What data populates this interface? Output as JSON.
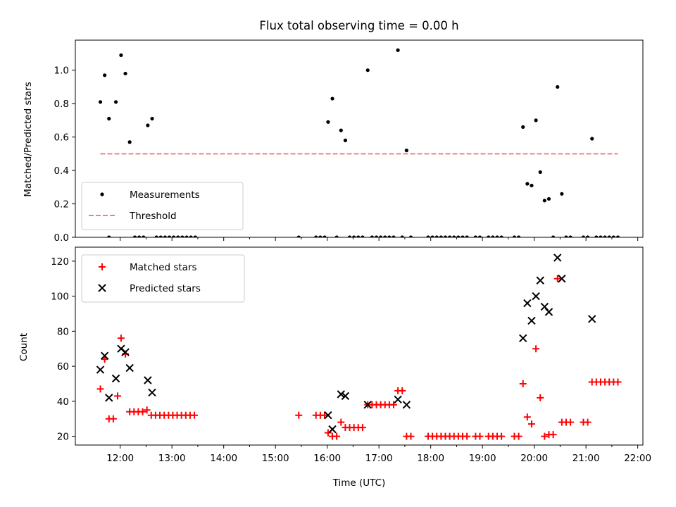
{
  "chart_data": [
    {
      "type": "scatter",
      "title": "Flux total observing time = 0.00 h",
      "xlabel": "",
      "ylabel": "Matched/Predicted stars",
      "xlim": [
        "11:08",
        "22:06"
      ],
      "ylim": [
        0,
        1.18
      ],
      "x_ticks": [
        "12:00",
        "13:00",
        "14:00",
        "15:00",
        "16:00",
        "17:00",
        "18:00",
        "19:00",
        "20:00",
        "21:00",
        "22:00"
      ],
      "y_ticks": [
        "0.0",
        "0.2",
        "0.4",
        "0.6",
        "0.8",
        "1.0"
      ],
      "legend_position": "lower-left",
      "series": [
        {
          "name": "Measurements",
          "marker": "dot",
          "color": "#000000",
          "points": [
            [
              "11:37",
              0.81
            ],
            [
              "11:42",
              0.97
            ],
            [
              "11:47",
              0.71
            ],
            [
              "11:55",
              0.81
            ],
            [
              "12:01",
              1.09
            ],
            [
              "12:06",
              0.98
            ],
            [
              "12:11",
              0.57
            ],
            [
              "12:32",
              0.67
            ],
            [
              "12:37",
              0.71
            ],
            [
              "16:01",
              0.69
            ],
            [
              "16:06",
              0.83
            ],
            [
              "16:16",
              0.64
            ],
            [
              "16:21",
              0.58
            ],
            [
              "16:47",
              1.0
            ],
            [
              "17:22",
              1.12
            ],
            [
              "17:32",
              0.52
            ],
            [
              "19:47",
              0.66
            ],
            [
              "19:52",
              0.32
            ],
            [
              "19:57",
              0.31
            ],
            [
              "20:02",
              0.7
            ],
            [
              "20:07",
              0.39
            ],
            [
              "20:12",
              0.22
            ],
            [
              "20:17",
              0.23
            ],
            [
              "20:27",
              0.9
            ],
            [
              "20:32",
              0.26
            ],
            [
              "21:07",
              0.59
            ],
            [
              "11:47",
              0.0
            ],
            [
              "12:17",
              0.0
            ],
            [
              "12:22",
              0.0
            ],
            [
              "12:27",
              0.0
            ],
            [
              "12:42",
              0.0
            ],
            [
              "12:47",
              0.0
            ],
            [
              "12:52",
              0.0
            ],
            [
              "12:57",
              0.0
            ],
            [
              "13:02",
              0.0
            ],
            [
              "13:07",
              0.0
            ],
            [
              "13:12",
              0.0
            ],
            [
              "13:17",
              0.0
            ],
            [
              "13:22",
              0.0
            ],
            [
              "13:27",
              0.0
            ],
            [
              "15:27",
              0.0
            ],
            [
              "15:47",
              0.0
            ],
            [
              "15:52",
              0.0
            ],
            [
              "15:57",
              0.0
            ],
            [
              "16:11",
              0.0
            ],
            [
              "16:26",
              0.0
            ],
            [
              "16:31",
              0.0
            ],
            [
              "16:36",
              0.0
            ],
            [
              "16:41",
              0.0
            ],
            [
              "16:52",
              0.0
            ],
            [
              "16:57",
              0.0
            ],
            [
              "17:02",
              0.0
            ],
            [
              "17:07",
              0.0
            ],
            [
              "17:12",
              0.0
            ],
            [
              "17:17",
              0.0
            ],
            [
              "17:27",
              0.0
            ],
            [
              "17:37",
              0.0
            ],
            [
              "17:57",
              0.0
            ],
            [
              "18:02",
              0.0
            ],
            [
              "18:07",
              0.0
            ],
            [
              "18:12",
              0.0
            ],
            [
              "18:17",
              0.0
            ],
            [
              "18:22",
              0.0
            ],
            [
              "18:27",
              0.0
            ],
            [
              "18:32",
              0.0
            ],
            [
              "18:37",
              0.0
            ],
            [
              "18:42",
              0.0
            ],
            [
              "18:52",
              0.0
            ],
            [
              "18:57",
              0.0
            ],
            [
              "19:07",
              0.0
            ],
            [
              "19:12",
              0.0
            ],
            [
              "19:17",
              0.0
            ],
            [
              "19:22",
              0.0
            ],
            [
              "19:37",
              0.0
            ],
            [
              "19:42",
              0.0
            ],
            [
              "20:22",
              0.0
            ],
            [
              "20:37",
              0.0
            ],
            [
              "20:42",
              0.0
            ],
            [
              "20:57",
              0.0
            ],
            [
              "21:02",
              0.0
            ],
            [
              "21:12",
              0.0
            ],
            [
              "21:17",
              0.0
            ],
            [
              "21:22",
              0.0
            ],
            [
              "21:27",
              0.0
            ],
            [
              "21:32",
              0.0
            ],
            [
              "21:37",
              0.0
            ]
          ]
        },
        {
          "name": "Threshold",
          "style": "dashed",
          "color": "#f08080",
          "points": [
            [
              "11:37",
              0.5
            ],
            [
              "21:37",
              0.5
            ]
          ]
        }
      ]
    },
    {
      "type": "scatter",
      "title": "",
      "xlabel": "Time (UTC)",
      "ylabel": "Count",
      "xlim": [
        "11:08",
        "22:06"
      ],
      "ylim": [
        15,
        128
      ],
      "x_ticks": [
        "12:00",
        "13:00",
        "14:00",
        "15:00",
        "16:00",
        "17:00",
        "18:00",
        "19:00",
        "20:00",
        "21:00",
        "22:00"
      ],
      "y_ticks": [
        "20",
        "40",
        "60",
        "80",
        "100",
        "120"
      ],
      "legend_position": "upper-left",
      "series": [
        {
          "name": "Matched stars",
          "marker": "plus",
          "color": "#ff0000",
          "points": [
            [
              "11:37",
              47
            ],
            [
              "11:42",
              64
            ],
            [
              "11:47",
              30
            ],
            [
              "11:52",
              30
            ],
            [
              "11:57",
              43
            ],
            [
              "12:01",
              76
            ],
            [
              "12:06",
              67
            ],
            [
              "12:11",
              34
            ],
            [
              "12:16",
              34
            ],
            [
              "12:21",
              34
            ],
            [
              "12:26",
              34
            ],
            [
              "12:31",
              35
            ],
            [
              "12:36",
              32
            ],
            [
              "12:41",
              32
            ],
            [
              "12:46",
              32
            ],
            [
              "12:51",
              32
            ],
            [
              "12:56",
              32
            ],
            [
              "13:01",
              32
            ],
            [
              "13:06",
              32
            ],
            [
              "13:11",
              32
            ],
            [
              "13:16",
              32
            ],
            [
              "13:21",
              32
            ],
            [
              "13:26",
              32
            ],
            [
              "15:27",
              32
            ],
            [
              "15:47",
              32
            ],
            [
              "15:52",
              32
            ],
            [
              "15:57",
              32
            ],
            [
              "16:01",
              22
            ],
            [
              "16:06",
              20
            ],
            [
              "16:11",
              20
            ],
            [
              "16:16",
              28
            ],
            [
              "16:21",
              25
            ],
            [
              "16:26",
              25
            ],
            [
              "16:31",
              25
            ],
            [
              "16:36",
              25
            ],
            [
              "16:41",
              25
            ],
            [
              "16:47",
              38
            ],
            [
              "16:52",
              38
            ],
            [
              "16:57",
              38
            ],
            [
              "17:02",
              38
            ],
            [
              "17:07",
              38
            ],
            [
              "17:12",
              38
            ],
            [
              "17:17",
              38
            ],
            [
              "17:22",
              46
            ],
            [
              "17:27",
              46
            ],
            [
              "17:32",
              20
            ],
            [
              "17:37",
              20
            ],
            [
              "17:57",
              20
            ],
            [
              "18:02",
              20
            ],
            [
              "18:07",
              20
            ],
            [
              "18:12",
              20
            ],
            [
              "18:17",
              20
            ],
            [
              "18:22",
              20
            ],
            [
              "18:27",
              20
            ],
            [
              "18:32",
              20
            ],
            [
              "18:37",
              20
            ],
            [
              "18:42",
              20
            ],
            [
              "18:52",
              20
            ],
            [
              "18:57",
              20
            ],
            [
              "19:07",
              20
            ],
            [
              "19:12",
              20
            ],
            [
              "19:17",
              20
            ],
            [
              "19:22",
              20
            ],
            [
              "19:37",
              20
            ],
            [
              "19:42",
              20
            ],
            [
              "19:47",
              50
            ],
            [
              "19:52",
              31
            ],
            [
              "19:57",
              27
            ],
            [
              "20:02",
              70
            ],
            [
              "20:07",
              42
            ],
            [
              "20:12",
              20
            ],
            [
              "20:17",
              21
            ],
            [
              "20:22",
              21
            ],
            [
              "20:27",
              110
            ],
            [
              "20:32",
              28
            ],
            [
              "20:37",
              28
            ],
            [
              "20:42",
              28
            ],
            [
              "20:57",
              28
            ],
            [
              "21:02",
              28
            ],
            [
              "21:07",
              51
            ],
            [
              "21:12",
              51
            ],
            [
              "21:17",
              51
            ],
            [
              "21:22",
              51
            ],
            [
              "21:27",
              51
            ],
            [
              "21:32",
              51
            ],
            [
              "21:37",
              51
            ]
          ]
        },
        {
          "name": "Predicted stars",
          "marker": "x",
          "color": "#000000",
          "points": [
            [
              "11:37",
              58
            ],
            [
              "11:42",
              66
            ],
            [
              "11:47",
              42
            ],
            [
              "11:55",
              53
            ],
            [
              "12:01",
              70
            ],
            [
              "12:06",
              68
            ],
            [
              "12:11",
              59
            ],
            [
              "12:32",
              52
            ],
            [
              "12:37",
              45
            ],
            [
              "16:01",
              32
            ],
            [
              "16:06",
              24
            ],
            [
              "16:16",
              44
            ],
            [
              "16:21",
              43
            ],
            [
              "16:47",
              38
            ],
            [
              "17:22",
              41
            ],
            [
              "17:32",
              38
            ],
            [
              "19:47",
              76
            ],
            [
              "19:52",
              96
            ],
            [
              "19:57",
              86
            ],
            [
              "20:02",
              100
            ],
            [
              "20:07",
              109
            ],
            [
              "20:12",
              94
            ],
            [
              "20:17",
              91
            ],
            [
              "20:27",
              122
            ],
            [
              "20:32",
              110
            ],
            [
              "21:07",
              87
            ]
          ]
        }
      ]
    }
  ]
}
